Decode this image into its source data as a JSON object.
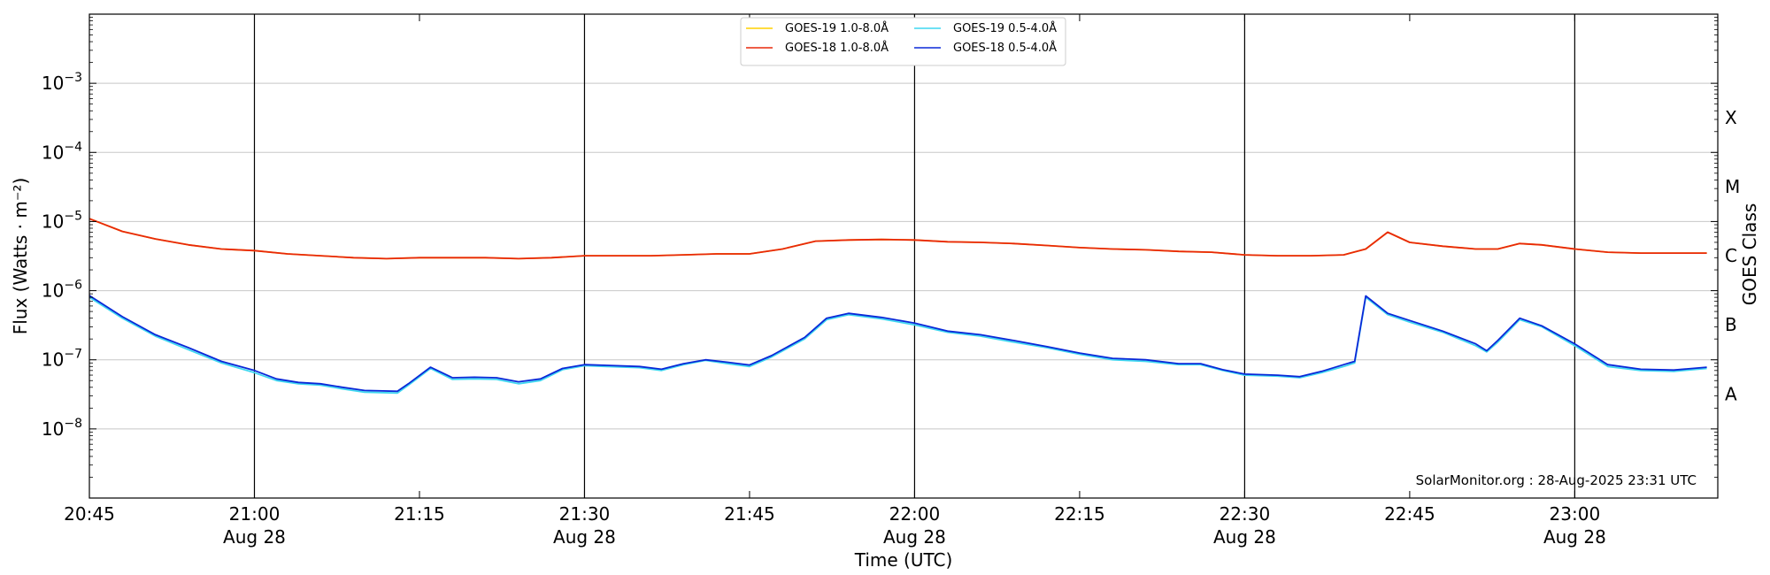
{
  "chart_data": {
    "type": "line",
    "xlabel": "Time (UTC)",
    "ylabel": "Flux (Watts · m⁻²)",
    "y2label": "GOES Class",
    "yscale": "log",
    "ylim": [
      1e-09,
      0.01
    ],
    "xlim": [
      "20:45",
      "23:13"
    ],
    "grid": "horizontal",
    "legend_position": "top-center",
    "credit": "SolarMonitor.org : 28-Aug-2025 23:31 UTC",
    "x_ticks": [
      {
        "time": "20:45",
        "label": "20:45",
        "date": ""
      },
      {
        "time": "21:00",
        "label": "21:00",
        "date": "Aug 28"
      },
      {
        "time": "21:15",
        "label": "21:15",
        "date": ""
      },
      {
        "time": "21:30",
        "label": "21:30",
        "date": "Aug 28"
      },
      {
        "time": "21:45",
        "label": "21:45",
        "date": ""
      },
      {
        "time": "22:00",
        "label": "22:00",
        "date": "Aug 28"
      },
      {
        "time": "22:15",
        "label": "22:15",
        "date": ""
      },
      {
        "time": "22:30",
        "label": "22:30",
        "date": "Aug 28"
      },
      {
        "time": "22:45",
        "label": "22:45",
        "date": ""
      },
      {
        "time": "23:00",
        "label": "23:00",
        "date": "Aug 28"
      }
    ],
    "vertical_lines": [
      "21:00",
      "21:30",
      "22:00",
      "22:30",
      "23:00"
    ],
    "y_ticks": [
      {
        "value": 0.001,
        "label": "10",
        "exp": "−3"
      },
      {
        "value": 0.0001,
        "label": "10",
        "exp": "−4"
      },
      {
        "value": 1e-05,
        "label": "10",
        "exp": "−5"
      },
      {
        "value": 1e-06,
        "label": "10",
        "exp": "−6"
      },
      {
        "value": 1e-07,
        "label": "10",
        "exp": "−7"
      },
      {
        "value": 1e-08,
        "label": "10",
        "exp": "−8"
      }
    ],
    "goes_classes": [
      {
        "label": "X",
        "value": 0.00032
      },
      {
        "label": "M",
        "value": 3.2e-05
      },
      {
        "label": "C",
        "value": 3.2e-06
      },
      {
        "label": "B",
        "value": 3.2e-07
      },
      {
        "label": "A",
        "value": 3.2e-08
      }
    ],
    "series": [
      {
        "name": "GOES-19 1.0-8.0Å",
        "color": "#ffd000",
        "x": [
          "20:45",
          "20:48",
          "20:51",
          "20:54",
          "20:57",
          "21:00",
          "21:03",
          "21:06",
          "21:09",
          "21:12",
          "21:15",
          "21:18",
          "21:21",
          "21:24",
          "21:27",
          "21:30",
          "21:33",
          "21:36",
          "21:39",
          "21:42",
          "21:45",
          "21:48",
          "21:51",
          "21:54",
          "21:57",
          "22:00",
          "22:03",
          "22:06",
          "22:09",
          "22:12",
          "22:15",
          "22:18",
          "22:21",
          "22:24",
          "22:27",
          "22:30",
          "22:33",
          "22:36",
          "22:39",
          "22:41",
          "22:43",
          "22:45",
          "22:48",
          "22:51",
          "22:53",
          "22:55",
          "22:57",
          "23:00",
          "23:03",
          "23:06",
          "23:09",
          "23:12"
        ],
        "values": [
          1.1e-05,
          7.2e-06,
          5.6e-06,
          4.6e-06,
          4e-06,
          3.8e-06,
          3.4e-06,
          3.2e-06,
          3e-06,
          2.9e-06,
          3e-06,
          3e-06,
          3e-06,
          2.9e-06,
          3e-06,
          3.2e-06,
          3.2e-06,
          3.2e-06,
          3.3e-06,
          3.4e-06,
          3.4e-06,
          4e-06,
          5.2e-06,
          5.4e-06,
          5.5e-06,
          5.4e-06,
          5.1e-06,
          5e-06,
          4.8e-06,
          4.5e-06,
          4.2e-06,
          4e-06,
          3.9e-06,
          3.7e-06,
          3.6e-06,
          3.3e-06,
          3.2e-06,
          3.2e-06,
          3.3e-06,
          4e-06,
          7e-06,
          5e-06,
          4.4e-06,
          4e-06,
          4e-06,
          4.8e-06,
          4.6e-06,
          4e-06,
          3.6e-06,
          3.5e-06,
          3.5e-06,
          3.5e-06
        ]
      },
      {
        "name": "GOES-18 1.0-8.0Å",
        "color": "#e8280a",
        "x": [
          "20:45",
          "20:48",
          "20:51",
          "20:54",
          "20:57",
          "21:00",
          "21:03",
          "21:06",
          "21:09",
          "21:12",
          "21:15",
          "21:18",
          "21:21",
          "21:24",
          "21:27",
          "21:30",
          "21:33",
          "21:36",
          "21:39",
          "21:42",
          "21:45",
          "21:48",
          "21:51",
          "21:54",
          "21:57",
          "22:00",
          "22:03",
          "22:06",
          "22:09",
          "22:12",
          "22:15",
          "22:18",
          "22:21",
          "22:24",
          "22:27",
          "22:30",
          "22:33",
          "22:36",
          "22:39",
          "22:41",
          "22:43",
          "22:45",
          "22:48",
          "22:51",
          "22:53",
          "22:55",
          "22:57",
          "23:00",
          "23:03",
          "23:06",
          "23:09",
          "23:12"
        ],
        "values": [
          1.1e-05,
          7.2e-06,
          5.6e-06,
          4.6e-06,
          4e-06,
          3.8e-06,
          3.4e-06,
          3.2e-06,
          3e-06,
          2.9e-06,
          3e-06,
          3e-06,
          3e-06,
          2.9e-06,
          3e-06,
          3.2e-06,
          3.2e-06,
          3.2e-06,
          3.3e-06,
          3.4e-06,
          3.4e-06,
          4e-06,
          5.2e-06,
          5.4e-06,
          5.5e-06,
          5.4e-06,
          5.1e-06,
          5e-06,
          4.8e-06,
          4.5e-06,
          4.2e-06,
          4e-06,
          3.9e-06,
          3.7e-06,
          3.6e-06,
          3.3e-06,
          3.2e-06,
          3.2e-06,
          3.3e-06,
          4e-06,
          7e-06,
          5e-06,
          4.4e-06,
          4e-06,
          4e-06,
          4.8e-06,
          4.6e-06,
          4e-06,
          3.6e-06,
          3.5e-06,
          3.5e-06,
          3.5e-06
        ]
      },
      {
        "name": "GOES-19 0.5-4.0Å",
        "color": "#3fd7f0",
        "x": [
          "20:45",
          "20:48",
          "20:51",
          "20:54",
          "20:57",
          "21:00",
          "21:02",
          "21:04",
          "21:06",
          "21:08",
          "21:10",
          "21:13",
          "21:14",
          "21:16",
          "21:18",
          "21:20",
          "21:22",
          "21:24",
          "21:26",
          "21:28",
          "21:30",
          "21:32",
          "21:35",
          "21:37",
          "21:39",
          "21:41",
          "21:43",
          "21:45",
          "21:47",
          "21:50",
          "21:52",
          "21:54",
          "21:57",
          "22:00",
          "22:03",
          "22:06",
          "22:09",
          "22:12",
          "22:15",
          "22:18",
          "22:21",
          "22:24",
          "22:26",
          "22:28",
          "22:30",
          "22:33",
          "22:35",
          "22:37",
          "22:39",
          "22:40",
          "22:41",
          "22:43",
          "22:45",
          "22:48",
          "22:51",
          "22:52",
          "22:53",
          "22:55",
          "22:57",
          "23:00",
          "23:03",
          "23:06",
          "23:09",
          "23:12"
        ],
        "values": [
          8e-07,
          4e-07,
          2.2e-07,
          1.4e-07,
          9e-08,
          6.5e-08,
          5e-08,
          4.5e-08,
          4.3e-08,
          3.8e-08,
          3.4e-08,
          3.3e-08,
          4.3e-08,
          7.5e-08,
          5.2e-08,
          5.3e-08,
          5.2e-08,
          4.5e-08,
          5e-08,
          7.2e-08,
          8.2e-08,
          8e-08,
          7.7e-08,
          7e-08,
          8.5e-08,
          9.8e-08,
          8.8e-08,
          8e-08,
          1.1e-07,
          2e-07,
          3.8e-07,
          4.5e-07,
          3.9e-07,
          3.2e-07,
          2.5e-07,
          2.2e-07,
          1.8e-07,
          1.5e-07,
          1.2e-07,
          1e-07,
          9.5e-08,
          8.5e-08,
          8.5e-08,
          7e-08,
          6e-08,
          5.8e-08,
          5.5e-08,
          6.5e-08,
          8e-08,
          9e-08,
          8e-07,
          4.5e-07,
          3.5e-07,
          2.5e-07,
          1.6e-07,
          1.3e-07,
          1.8e-07,
          3.8e-07,
          3e-07,
          1.6e-07,
          8e-08,
          7e-08,
          6.8e-08,
          7.5e-08
        ]
      },
      {
        "name": "GOES-18 0.5-4.0Å",
        "color": "#0a28d8",
        "x": [
          "20:45",
          "20:48",
          "20:51",
          "20:54",
          "20:57",
          "21:00",
          "21:02",
          "21:04",
          "21:06",
          "21:08",
          "21:10",
          "21:13",
          "21:14",
          "21:16",
          "21:18",
          "21:20",
          "21:22",
          "21:24",
          "21:26",
          "21:28",
          "21:30",
          "21:32",
          "21:35",
          "21:37",
          "21:39",
          "21:41",
          "21:43",
          "21:45",
          "21:47",
          "21:50",
          "21:52",
          "21:54",
          "21:57",
          "22:00",
          "22:03",
          "22:06",
          "22:09",
          "22:12",
          "22:15",
          "22:18",
          "22:21",
          "22:24",
          "22:26",
          "22:28",
          "22:30",
          "22:33",
          "22:35",
          "22:37",
          "22:39",
          "22:40",
          "22:41",
          "22:43",
          "22:45",
          "22:48",
          "22:51",
          "22:52",
          "22:53",
          "22:55",
          "22:57",
          "23:00",
          "23:03",
          "23:06",
          "23:09",
          "23:12"
        ],
        "values": [
          8.5e-07,
          4.2e-07,
          2.3e-07,
          1.5e-07,
          9.5e-08,
          7e-08,
          5.3e-08,
          4.7e-08,
          4.5e-08,
          4e-08,
          3.6e-08,
          3.5e-08,
          4.5e-08,
          7.8e-08,
          5.5e-08,
          5.6e-08,
          5.5e-08,
          4.8e-08,
          5.3e-08,
          7.5e-08,
          8.5e-08,
          8.3e-08,
          8e-08,
          7.3e-08,
          8.8e-08,
          1e-07,
          9.2e-08,
          8.4e-08,
          1.15e-07,
          2.1e-07,
          4e-07,
          4.7e-07,
          4.1e-07,
          3.4e-07,
          2.6e-07,
          2.3e-07,
          1.9e-07,
          1.55e-07,
          1.25e-07,
          1.05e-07,
          1e-07,
          8.8e-08,
          8.8e-08,
          7.2e-08,
          6.2e-08,
          6e-08,
          5.7e-08,
          6.8e-08,
          8.5e-08,
          9.5e-08,
          8.4e-07,
          4.7e-07,
          3.7e-07,
          2.6e-07,
          1.7e-07,
          1.35e-07,
          1.9e-07,
          4e-07,
          3.1e-07,
          1.7e-07,
          8.5e-08,
          7.3e-08,
          7.1e-08,
          7.8e-08
        ]
      }
    ]
  }
}
